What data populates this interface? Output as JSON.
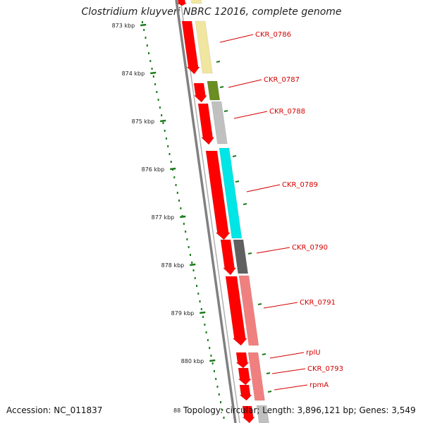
{
  "header": {
    "title": "Clostridium kluyveri NBRC 12016, complete genome"
  },
  "footer": {
    "accession": "Accession: NC_011837",
    "topology": "Topology: circular; Length: 3,896,121 bp; Genes: 3,549",
    "partial_tick": "88"
  },
  "ticks": [
    "873 kbp",
    "874 kbp",
    "875 kbp",
    "876 kbp",
    "877 kbp",
    "878 kbp",
    "879 kbp",
    "880 kbp"
  ],
  "genes": [
    {
      "name": "CKR_0786",
      "color": "#f0e6a0"
    },
    {
      "name": "CKR_0787",
      "color": "#6b8e23"
    },
    {
      "name": "CKR_0788",
      "color": "#c0c0c0"
    },
    {
      "name": "CKR_0789",
      "color": "#00e5e5"
    },
    {
      "name": "CKR_0790",
      "color": "#606060"
    },
    {
      "name": "CKR_0791",
      "color": "#f08080"
    },
    {
      "name": "rplU",
      "color": "#f08080"
    },
    {
      "name": "CKR_0793",
      "color": "#f08080"
    },
    {
      "name": "rpmA",
      "color": "#f08080"
    }
  ],
  "colors": {
    "cds": "#ff0000",
    "backbone": "#808080",
    "tick": "#1a7a1a",
    "label": "#d40000"
  }
}
